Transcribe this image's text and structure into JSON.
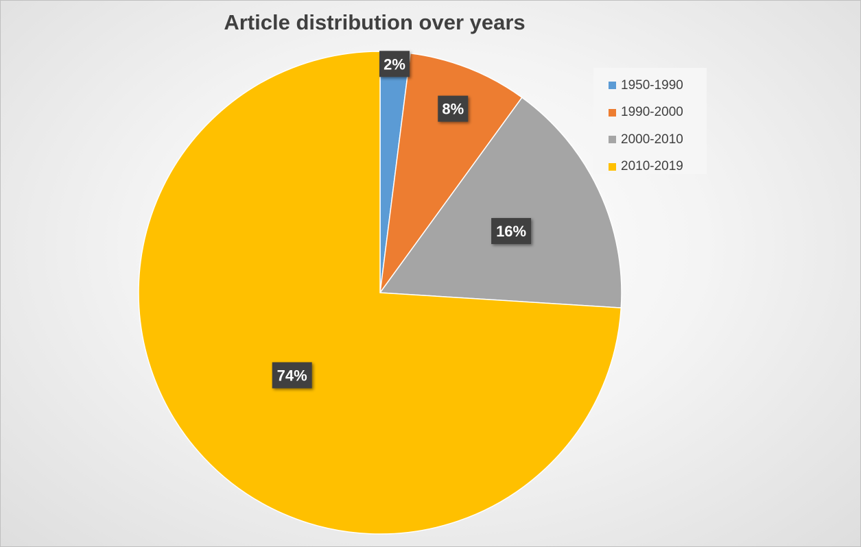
{
  "chart_data": {
    "type": "pie",
    "title": "Article distribution over years",
    "categories": [
      "1950-1990",
      "1990-2000",
      "2000-2010",
      "2010-2019"
    ],
    "values": [
      2,
      8,
      16,
      74
    ],
    "data_labels": [
      "2%",
      "8%",
      "16%",
      "74%"
    ],
    "colors": [
      "#5b9bd5",
      "#ed7d31",
      "#a5a5a5",
      "#ffc000"
    ],
    "legend_position": "top-right"
  }
}
